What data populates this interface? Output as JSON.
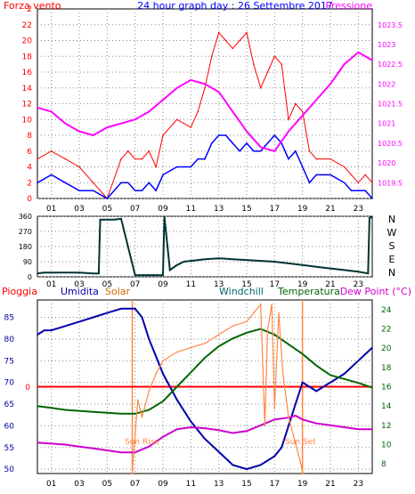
{
  "chart_data": [
    {
      "type": "line",
      "title": "24 hour graph day : 26 Settembre 2017",
      "left_label": "Forza vento",
      "right_label": "Pressione",
      "colors": {
        "wind_gust": "#ff0000",
        "wind_avg": "#0000ff",
        "pressure": "#ff00ff",
        "left_axis": "#ff0000",
        "right_axis": "#ff00ff",
        "title": "#0000ff"
      },
      "x_ticks": [
        "01",
        "03",
        "05",
        "07",
        "09",
        "11",
        "13",
        "15",
        "17",
        "19",
        "21",
        "23"
      ],
      "y_ticks": [
        "0",
        "2",
        "4",
        "6",
        "8",
        "10",
        "12",
        "14",
        "16",
        "18",
        "20",
        "22"
      ],
      "y_top_label": "2",
      "ylim": [
        0,
        24
      ],
      "y2_ticks": [
        "1019.5",
        "1020",
        "1020.5",
        "1021",
        "1021.5",
        "1022",
        "1022.5",
        "1023",
        "1023.5"
      ],
      "y2lim": [
        1019.1,
        1023.9
      ],
      "series": [
        {
          "name": "wind_gust",
          "x": [
            0,
            1,
            2,
            3,
            4,
            5,
            6,
            6.5,
            7,
            7.5,
            8,
            8.5,
            9,
            10,
            11,
            11.5,
            12,
            12.5,
            13,
            13.5,
            14,
            14.5,
            15,
            15.5,
            16,
            16.5,
            17,
            17.5,
            18,
            18.5,
            19,
            19.5,
            20,
            21,
            22,
            22.5,
            23,
            23.5,
            24
          ],
          "values": [
            5,
            6,
            5,
            4,
            2,
            0,
            5,
            6,
            5,
            5,
            6,
            4,
            8,
            10,
            9,
            11,
            14,
            18,
            21,
            20,
            19,
            20,
            21,
            17,
            14,
            16,
            18,
            17,
            10,
            12,
            11,
            6,
            5,
            5,
            4,
            3,
            2,
            3,
            2
          ]
        },
        {
          "name": "wind_avg",
          "x": [
            0,
            1,
            2,
            3,
            4,
            5,
            6,
            6.5,
            7,
            7.5,
            8,
            8.5,
            9,
            10,
            11,
            11.5,
            12,
            12.5,
            13,
            13.5,
            14,
            14.5,
            15,
            15.5,
            16,
            16.5,
            17,
            17.5,
            18,
            18.5,
            19,
            19.5,
            20,
            21,
            22,
            22.5,
            23,
            23.5,
            24
          ],
          "values": [
            2,
            3,
            2,
            1,
            1,
            0,
            2,
            2,
            1,
            1,
            2,
            1,
            3,
            4,
            4,
            5,
            5,
            7,
            8,
            8,
            7,
            6,
            7,
            6,
            6,
            7,
            8,
            7,
            5,
            6,
            4,
            2,
            3,
            3,
            2,
            1,
            1,
            1,
            0
          ]
        },
        {
          "name": "pressure",
          "x": [
            0,
            1,
            2,
            3,
            4,
            5,
            6,
            7,
            8,
            9,
            10,
            11,
            12,
            13,
            14,
            15,
            16,
            17,
            18,
            19,
            20,
            21,
            22,
            23,
            23.5,
            24
          ],
          "values": [
            1021.4,
            1021.3,
            1021.0,
            1020.8,
            1020.7,
            1020.9,
            1021.0,
            1021.1,
            1021.3,
            1021.6,
            1021.9,
            1022.1,
            1022.0,
            1021.8,
            1021.3,
            1020.8,
            1020.4,
            1020.3,
            1020.8,
            1021.2,
            1021.6,
            1022.0,
            1022.5,
            1022.8,
            1022.7,
            1022.6
          ]
        }
      ]
    },
    {
      "type": "line",
      "title": "",
      "y_ticks": [
        "0",
        "90",
        "180",
        "270",
        "360"
      ],
      "ylim": [
        0,
        360
      ],
      "direction_labels": [
        "N",
        "W",
        "S",
        "E",
        "N"
      ],
      "colors": {
        "direction": "#003333"
      },
      "x_ticks": [
        "01",
        "03",
        "05",
        "07",
        "09",
        "11",
        "13",
        "15",
        "17",
        "19",
        "21",
        "23"
      ],
      "series": [
        {
          "name": "direction",
          "x": [
            0,
            0.5,
            1,
            2,
            3,
            4,
            4.4,
            4.5,
            5,
            5.5,
            6,
            7,
            8,
            9,
            9.1,
            9.5,
            10,
            10.5,
            11,
            12,
            13,
            14,
            15,
            16,
            17,
            18,
            19,
            20,
            21,
            22,
            23,
            23.7,
            23.8,
            24
          ],
          "values": [
            20,
            25,
            25,
            25,
            25,
            20,
            20,
            340,
            340,
            340,
            345,
            10,
            10,
            10,
            360,
            40,
            70,
            90,
            95,
            105,
            110,
            105,
            100,
            95,
            90,
            80,
            70,
            60,
            50,
            40,
            30,
            20,
            350,
            355
          ]
        }
      ]
    },
    {
      "type": "line",
      "title": "",
      "header_labels": [
        "Pioggia",
        "Umidita",
        "Solar",
        "Windchill",
        "Temperatura",
        "Dew Point (°C)"
      ],
      "annotations": [
        "Sun Rise",
        "Sun Set"
      ],
      "colors": {
        "pioggia": "#ff0000",
        "umidita": "#0000aa",
        "solar": "#cc6600",
        "windchill": "#006666",
        "temperatura": "#006600",
        "dewpoint": "#cc00cc",
        "sun": "#ff8844"
      },
      "x_ticks": [
        "01",
        "03",
        "05",
        "07",
        "09",
        "11",
        "13",
        "15",
        "17",
        "19",
        "21",
        "23"
      ],
      "y_ticks": [
        "50",
        "55",
        "60",
        "65",
        "70",
        "75",
        "80",
        "85"
      ],
      "ylim": [
        49,
        89
      ],
      "zero_label": "0",
      "y2_ticks": [
        "8",
        "10",
        "12",
        "14",
        "16",
        "18",
        "20",
        "22",
        "24"
      ],
      "y2lim": [
        7,
        25
      ],
      "series": [
        {
          "name": "Umidita",
          "x": [
            0,
            0.5,
            1,
            2,
            3,
            4,
            5,
            6,
            6.5,
            7,
            7.5,
            8,
            9,
            10,
            11,
            12,
            13,
            14,
            15,
            16,
            17,
            17.5,
            18,
            18.5,
            19,
            20,
            21,
            22,
            23,
            24
          ],
          "values": [
            81,
            82,
            82,
            83,
            84,
            85,
            86,
            87,
            87,
            87,
            85,
            80,
            72,
            66,
            61,
            57,
            54,
            51,
            50,
            51,
            53,
            55,
            60,
            65,
            70,
            68,
            70,
            72,
            75,
            78
          ]
        },
        {
          "name": "Temperatura",
          "x": [
            0,
            1,
            2,
            3,
            4,
            5,
            6,
            7,
            8,
            9,
            10,
            11,
            12,
            13,
            14,
            15,
            16,
            17,
            18,
            19,
            20,
            21,
            22,
            23,
            24
          ],
          "values": [
            14.0,
            13.8,
            13.6,
            13.5,
            13.4,
            13.3,
            13.2,
            13.2,
            13.6,
            14.5,
            16.0,
            17.5,
            19.0,
            20.2,
            21.0,
            21.6,
            22.0,
            21.4,
            20.4,
            19.4,
            18.2,
            17.2,
            16.8,
            16.4,
            15.9
          ]
        },
        {
          "name": "Dew Point",
          "x": [
            0,
            1,
            2,
            3,
            4,
            5,
            6,
            7,
            8,
            9,
            10,
            11,
            12,
            13,
            14,
            15,
            16,
            17,
            18,
            18.5,
            19,
            20,
            21,
            22,
            23,
            24
          ],
          "values": [
            10.2,
            10.1,
            10.0,
            9.8,
            9.6,
            9.4,
            9.2,
            9.2,
            9.8,
            10.8,
            11.6,
            11.8,
            11.7,
            11.5,
            11.2,
            11.4,
            12.0,
            12.6,
            12.8,
            13.0,
            12.6,
            12.2,
            12.0,
            11.8,
            11.6,
            11.6
          ]
        },
        {
          "name": "Solar",
          "x": [
            6.8,
            7,
            7.2,
            7.5,
            8,
            8.5,
            9,
            10,
            11,
            12,
            13,
            14,
            15,
            15.5,
            16,
            16.3,
            16.5,
            16.8,
            17,
            17.3,
            17.6,
            18,
            18.5,
            18.9,
            19
          ],
          "values": [
            49,
            58,
            66,
            62,
            68,
            72,
            75,
            77,
            78,
            79,
            81,
            83,
            84,
            86,
            88,
            60,
            82,
            88,
            64,
            86,
            72,
            62,
            56,
            51,
            49
          ]
        }
      ],
      "pioggia_value": 0
    }
  ]
}
